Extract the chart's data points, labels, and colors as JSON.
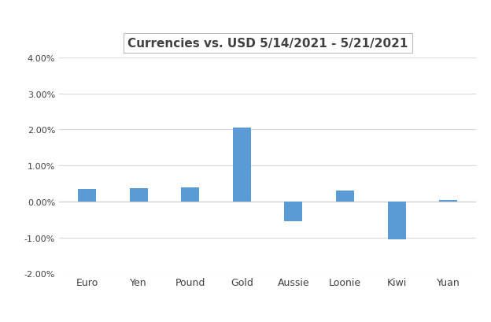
{
  "categories": [
    "Euro",
    "Yen",
    "Pound",
    "Gold",
    "Aussie",
    "Loonie",
    "Kiwi",
    "Yuan"
  ],
  "values": [
    0.0035,
    0.0038,
    0.004,
    0.0205,
    -0.0055,
    0.003,
    -0.0105,
    0.0005
  ],
  "bar_color": "#5B9BD5",
  "title": "Currencies vs. USD 5/14/2021 - 5/21/2021",
  "title_fontsize": 11,
  "title_fontweight": "bold",
  "ylim": [
    -0.02,
    0.04
  ],
  "yticks": [
    -0.02,
    -0.01,
    0.0,
    0.01,
    0.02,
    0.03,
    0.04
  ],
  "grid_color": "#D9D9D9",
  "background_color": "#FFFFFF",
  "bar_width": 0.35,
  "tick_label_fontsize": 8,
  "x_tick_fontsize": 9,
  "title_color": "#404040"
}
